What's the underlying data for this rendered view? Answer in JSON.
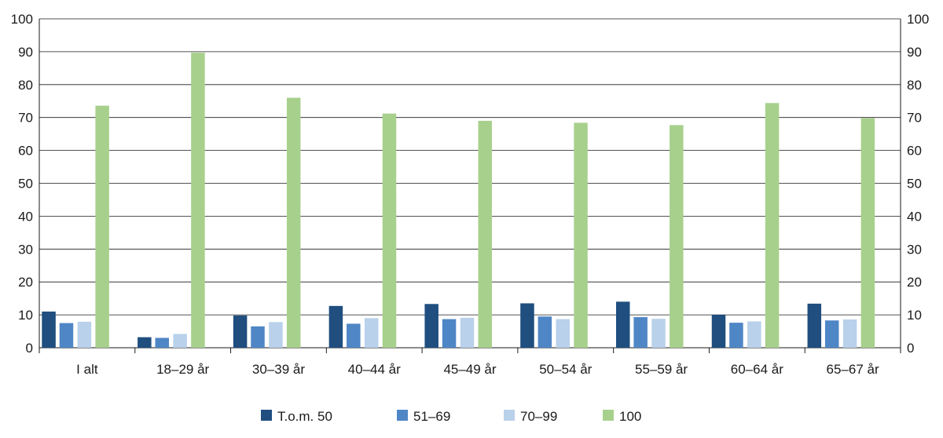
{
  "chart_data": {
    "type": "bar",
    "categories": [
      "I alt",
      "18–29 år",
      "30–39 år",
      "40–44 år",
      "45–49 år",
      "50–54 år",
      "55–59 år",
      "60–64 år",
      "65–67 år"
    ],
    "series": [
      {
        "name": "T.o.m. 50",
        "color": "#1f4e7f",
        "values": [
          11.0,
          3.2,
          9.8,
          12.7,
          13.3,
          13.5,
          14.0,
          10.0,
          13.4
        ]
      },
      {
        "name": "51–69",
        "color": "#4f86c6",
        "values": [
          7.5,
          3.0,
          6.5,
          7.3,
          8.7,
          9.5,
          9.3,
          7.6,
          8.3
        ]
      },
      {
        "name": "70–99",
        "color": "#b9d1ea",
        "values": [
          7.9,
          4.2,
          7.8,
          9.0,
          9.1,
          8.7,
          8.8,
          8.0,
          8.6
        ]
      },
      {
        "name": "100",
        "color": "#a8d08d",
        "values": [
          73.6,
          89.7,
          76.0,
          71.2,
          69.0,
          68.4,
          67.7,
          74.4,
          69.8
        ]
      }
    ],
    "ylim": [
      0,
      100
    ],
    "yticks": [
      "0",
      "10",
      "20",
      "30",
      "40",
      "50",
      "60",
      "70",
      "80",
      "90",
      "100"
    ],
    "grid": true,
    "legend_position": "bottom",
    "title": "",
    "xlabel": "",
    "ylabel": ""
  }
}
